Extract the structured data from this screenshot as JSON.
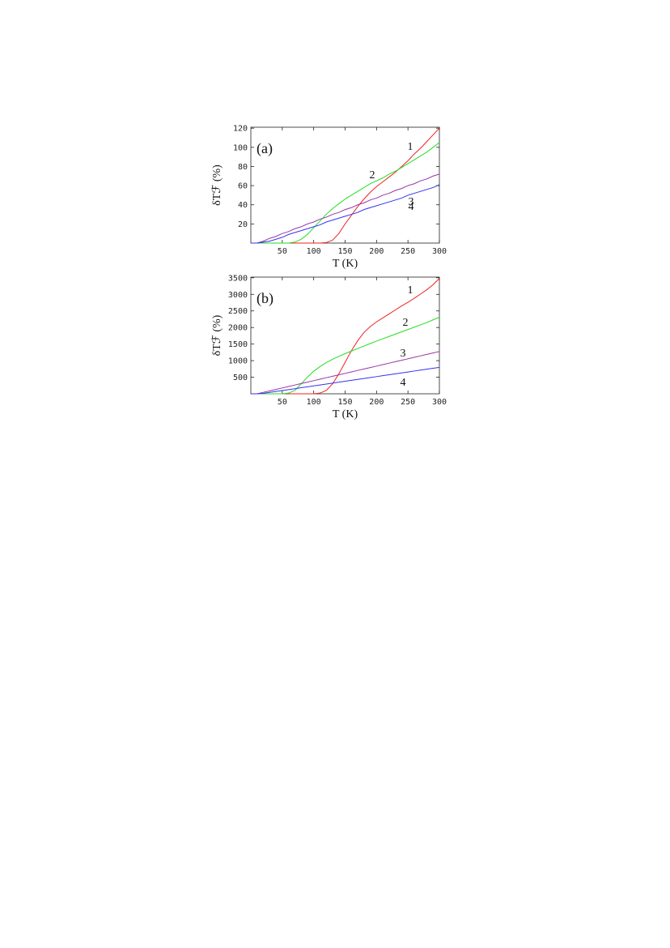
{
  "chart_data": [
    {
      "type": "line",
      "panel_label": "(a)",
      "x_label": "T (K)",
      "y_label": "δTℱ (%)",
      "x": [
        0,
        10,
        20,
        30,
        40,
        50,
        60,
        70,
        80,
        90,
        100,
        110,
        120,
        130,
        140,
        150,
        160,
        170,
        180,
        190,
        200,
        210,
        220,
        230,
        240,
        250,
        260,
        270,
        280,
        290,
        300
      ],
      "xlim": [
        0,
        300
      ],
      "xticks": [
        50,
        100,
        150,
        200,
        250,
        300
      ],
      "ylim": [
        0,
        121
      ],
      "yticks": [
        20,
        40,
        60,
        80,
        100,
        120
      ],
      "series": [
        {
          "name": "1",
          "color": "#ee2222",
          "values": [
            0,
            0,
            0,
            0,
            0,
            0,
            0,
            0,
            0,
            0,
            0,
            0,
            0.5,
            3,
            10,
            20,
            29,
            38,
            46,
            53,
            59,
            64,
            69,
            74,
            80,
            86,
            93,
            99,
            106,
            113,
            120
          ]
        },
        {
          "name": "2",
          "color": "#22dd22",
          "values": [
            0,
            0,
            0,
            0,
            0,
            0,
            0,
            1,
            4,
            9,
            16,
            23,
            30,
            36,
            41,
            46,
            50,
            54,
            58,
            62,
            65,
            68,
            72,
            75,
            79,
            83,
            87,
            91,
            95,
            100,
            105
          ]
        },
        {
          "name": "3",
          "color": "#9933aa",
          "values": [
            0,
            0,
            2,
            5,
            7,
            10,
            12,
            15,
            17,
            20,
            22,
            25,
            27,
            30,
            32,
            35,
            37,
            40,
            42,
            45,
            47,
            50,
            52,
            55,
            57,
            60,
            62,
            65,
            67,
            70,
            72
          ]
        },
        {
          "name": "4",
          "color": "#3333ee",
          "values": [
            0,
            0,
            1,
            2,
            4,
            6,
            9,
            11,
            13,
            15,
            17,
            19,
            22,
            24,
            26,
            28,
            30,
            32,
            35,
            37,
            39,
            41,
            43,
            45,
            47,
            50,
            52,
            54,
            56,
            58,
            61
          ]
        }
      ]
    },
    {
      "type": "line",
      "panel_label": "(b)",
      "x_label": "T (K)",
      "y_label": "δTℱ (%)",
      "x": [
        0,
        10,
        20,
        30,
        40,
        50,
        60,
        70,
        80,
        90,
        100,
        110,
        120,
        130,
        140,
        150,
        160,
        170,
        180,
        190,
        200,
        210,
        220,
        230,
        240,
        250,
        260,
        270,
        280,
        290,
        300
      ],
      "xlim": [
        0,
        300
      ],
      "xticks": [
        50,
        100,
        150,
        200,
        250,
        300
      ],
      "ylim": [
        0,
        3520
      ],
      "yticks": [
        500,
        1000,
        1500,
        2000,
        2500,
        3000,
        3500
      ],
      "series": [
        {
          "name": "1",
          "color": "#ee2222",
          "values": [
            0,
            0,
            0,
            0,
            0,
            0,
            0,
            0,
            0,
            0,
            0,
            20,
            100,
            300,
            600,
            950,
            1300,
            1600,
            1850,
            2030,
            2170,
            2290,
            2410,
            2530,
            2650,
            2760,
            2880,
            3010,
            3140,
            3290,
            3480
          ]
        },
        {
          "name": "2",
          "color": "#22dd22",
          "values": [
            0,
            0,
            0,
            0,
            0,
            0,
            20,
            100,
            300,
            500,
            680,
            820,
            940,
            1040,
            1130,
            1210,
            1290,
            1365,
            1440,
            1515,
            1590,
            1660,
            1730,
            1800,
            1870,
            1940,
            2010,
            2080,
            2150,
            2230,
            2310
          ]
        },
        {
          "name": "3",
          "color": "#9933aa",
          "values": [
            0,
            0,
            44,
            88,
            132,
            176,
            220,
            264,
            308,
            352,
            396,
            440,
            484,
            528,
            572,
            616,
            660,
            704,
            748,
            792,
            836,
            880,
            924,
            968,
            1012,
            1056,
            1100,
            1144,
            1188,
            1232,
            1276
          ]
        },
        {
          "name": "4",
          "color": "#3333ee",
          "values": [
            0,
            0,
            14,
            42,
            70,
            98,
            126,
            154,
            182,
            210,
            238,
            266,
            294,
            322,
            350,
            378,
            406,
            434,
            462,
            490,
            518,
            546,
            574,
            602,
            630,
            658,
            686,
            714,
            742,
            770,
            798
          ]
        }
      ]
    }
  ]
}
